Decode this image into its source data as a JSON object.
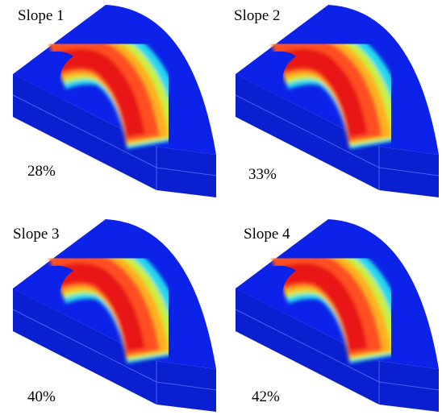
{
  "panels": [
    {
      "label": "Slope 1",
      "value": "28%"
    },
    {
      "label": "Slope 2",
      "value": "33%"
    },
    {
      "label": "Slope 3",
      "value": "40%"
    },
    {
      "label": "Slope 4",
      "value": "42%"
    }
  ]
}
